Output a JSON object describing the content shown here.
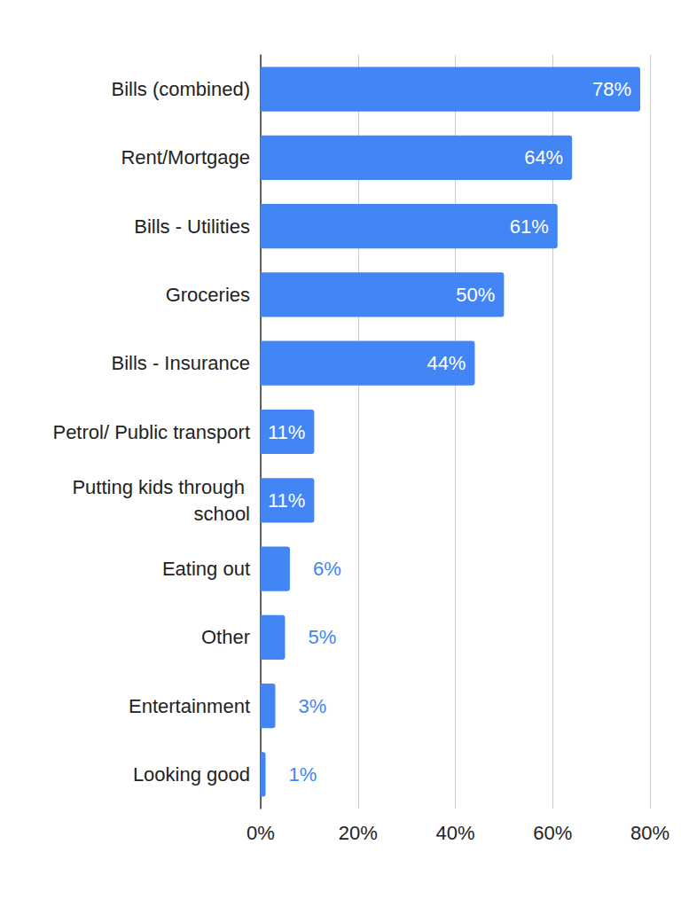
{
  "chart_data": {
    "type": "bar",
    "orientation": "horizontal",
    "categories": [
      "Bills (combined)",
      "Rent/Mortgage",
      "Bills - Utilities",
      "Groceries",
      "Bills - Insurance",
      "Petrol/ Public transport",
      "Putting kids through school",
      "Eating out",
      "Other",
      "Entertainment",
      "Looking good"
    ],
    "values": [
      78,
      64,
      61,
      50,
      44,
      11,
      11,
      6,
      5,
      3,
      1
    ],
    "value_labels": [
      "78%",
      "64%",
      "61%",
      "50%",
      "44%",
      "11%",
      "11%",
      "6%",
      "5%",
      "3%",
      "1%"
    ],
    "color": "#4285f4",
    "xlim": [
      0,
      80
    ],
    "xticks": [
      {
        "value": 0,
        "label": "0%"
      },
      {
        "value": 20,
        "label": "20%"
      },
      {
        "value": 40,
        "label": "40%"
      },
      {
        "value": 60,
        "label": "60%"
      },
      {
        "value": 80,
        "label": "80%"
      }
    ],
    "grid": true,
    "data_labels": true
  }
}
